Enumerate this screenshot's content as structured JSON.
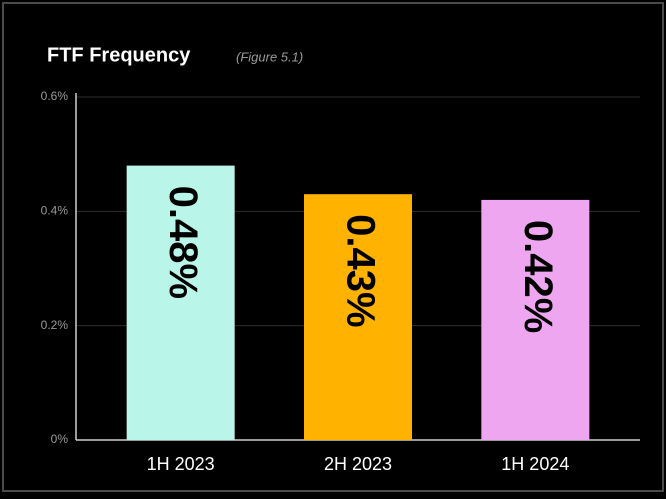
{
  "chart_data": {
    "type": "bar",
    "title": "FTF Frequency",
    "subtitle": "(Figure 5.1)",
    "categories": [
      "1H 2023",
      "2H 2023",
      "1H 2024"
    ],
    "values": [
      0.48,
      0.43,
      0.42
    ],
    "value_labels": [
      "0.48%",
      "0.43%",
      "0.42%"
    ],
    "colors": [
      "#b9f5e8",
      "#ffb300",
      "#eea6f0"
    ],
    "ylim": [
      0,
      0.6
    ],
    "yticks": [
      {
        "value": 0,
        "label": "0%"
      },
      {
        "value": 0.2,
        "label": "0.2%"
      },
      {
        "value": 0.4,
        "label": "0.4%"
      },
      {
        "value": 0.6,
        "label": "0.6%"
      }
    ],
    "grid": true
  }
}
